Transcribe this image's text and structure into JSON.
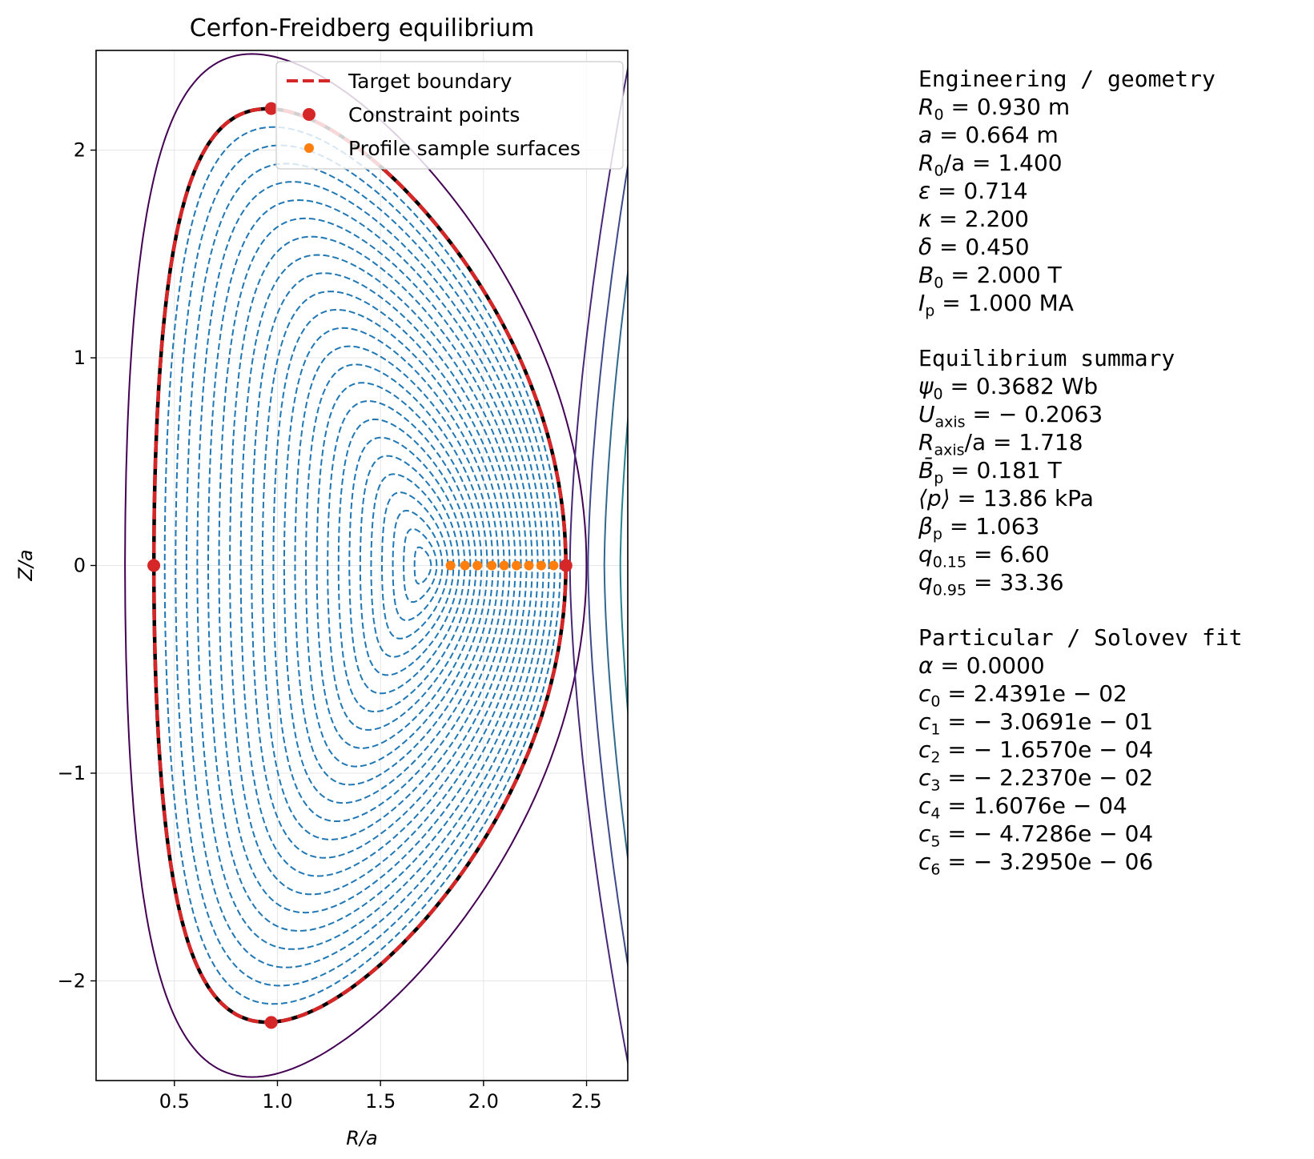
{
  "chart_data": {
    "type": "contour",
    "title": "Cerfon-Freidberg equilibrium",
    "xlabel": "R/a",
    "ylabel": "Z/a",
    "xlim": [
      0.12,
      2.7
    ],
    "ylim": [
      -2.48,
      2.48
    ],
    "xticks": [
      {
        "v": 0.5,
        "label": "0.5"
      },
      {
        "v": 1.0,
        "label": "1.0"
      },
      {
        "v": 1.5,
        "label": "1.5"
      },
      {
        "v": 2.0,
        "label": "2.0"
      },
      {
        "v": 2.5,
        "label": "2.5"
      }
    ],
    "yticks": [
      {
        "v": -2,
        "label": "−2"
      },
      {
        "v": -1,
        "label": "−1"
      },
      {
        "v": 0,
        "label": "0"
      },
      {
        "v": 1,
        "label": "1"
      },
      {
        "v": 2,
        "label": "2"
      }
    ],
    "grid": true,
    "legend": {
      "position": "top-right",
      "entries": [
        {
          "label": "Target boundary",
          "color": "#d62728",
          "style": "dashed-line"
        },
        {
          "label": "Constraint points",
          "color": "#d62728",
          "style": "marker-large"
        },
        {
          "label": "Profile sample surfaces",
          "color": "#ff7f0e",
          "style": "marker-small"
        }
      ]
    },
    "boundary": {
      "eps": 0.714,
      "kappa": 2.2,
      "delta": 0.45,
      "center": 1.4
    },
    "magnetic_axis": {
      "R": 1.718,
      "Z": 0
    },
    "constraint_points": [
      {
        "R": 0.4,
        "Z": 0
      },
      {
        "R": 2.4,
        "Z": 0
      },
      {
        "R": 0.97,
        "Z": 2.2
      },
      {
        "R": 0.97,
        "Z": -2.2
      }
    ],
    "profile_sample_R": [
      1.84,
      1.91,
      1.97,
      2.04,
      2.1,
      2.16,
      2.22,
      2.28,
      2.34,
      2.4
    ],
    "interior_surfaces_count": 24,
    "colors": {
      "interior": "#1f77b4",
      "boundary_solid": "#000000",
      "boundary_dashed": "#d62728",
      "samples": "#ff7f0e",
      "exterior": [
        "#440154",
        "#482777",
        "#3e4989",
        "#31688e",
        "#26828e",
        "#1f9e89",
        "#35b779",
        "#6ece58",
        "#b5de2b",
        "#fde725"
      ]
    }
  },
  "info": {
    "engineering_title": "Engineering / geometry",
    "engineering": [
      {
        "sym": "R",
        "sub": "0",
        "val": " = 0.930 m"
      },
      {
        "sym": "a",
        "sub": "",
        "val": " = 0.664 m"
      },
      {
        "sym": "R",
        "sub": "0",
        "val": "/a = 1.400"
      },
      {
        "sym": "ε",
        "sub": "",
        "val": " = 0.714"
      },
      {
        "sym": "κ",
        "sub": "",
        "val": " = 2.200"
      },
      {
        "sym": "δ",
        "sub": "",
        "val": " = 0.450"
      },
      {
        "sym": "B",
        "sub": "0",
        "val": " = 2.000 T"
      },
      {
        "sym": "I",
        "sub": "p",
        "val": " = 1.000 MA"
      }
    ],
    "summary_title": "Equilibrium summary",
    "summary": [
      {
        "sym": "ψ",
        "sub": "0",
        "val": " = 0.3682 Wb"
      },
      {
        "sym": "U",
        "sub": "axis",
        "val": " = − 0.2063"
      },
      {
        "sym": "R",
        "sub": "axis",
        "val": "/a = 1.718"
      },
      {
        "sym": "B̄",
        "sub": "p",
        "val": " = 0.181 T"
      },
      {
        "sym": "⟨p⟩",
        "sub": "",
        "val": " = 13.86 kPa"
      },
      {
        "sym": "β",
        "sub": "p",
        "val": " = 1.063"
      },
      {
        "sym": "q",
        "sub": "0.15",
        "val": " = 6.60"
      },
      {
        "sym": "q",
        "sub": "0.95",
        "val": " = 33.36"
      }
    ],
    "fit_title": "Particular / Solovev fit",
    "fit": [
      {
        "sym": "α",
        "sub": "",
        "val": " = 0.0000"
      },
      {
        "sym": "c",
        "sub": "0",
        "val": " = 2.4391e − 02"
      },
      {
        "sym": "c",
        "sub": "1",
        "val": " = − 3.0691e − 01"
      },
      {
        "sym": "c",
        "sub": "2",
        "val": " = − 1.6570e − 04"
      },
      {
        "sym": "c",
        "sub": "3",
        "val": " = − 2.2370e − 02"
      },
      {
        "sym": "c",
        "sub": "4",
        "val": " = 1.6076e − 04"
      },
      {
        "sym": "c",
        "sub": "5",
        "val": " = − 4.7286e − 04"
      },
      {
        "sym": "c",
        "sub": "6",
        "val": " = − 3.2950e − 06"
      }
    ]
  }
}
